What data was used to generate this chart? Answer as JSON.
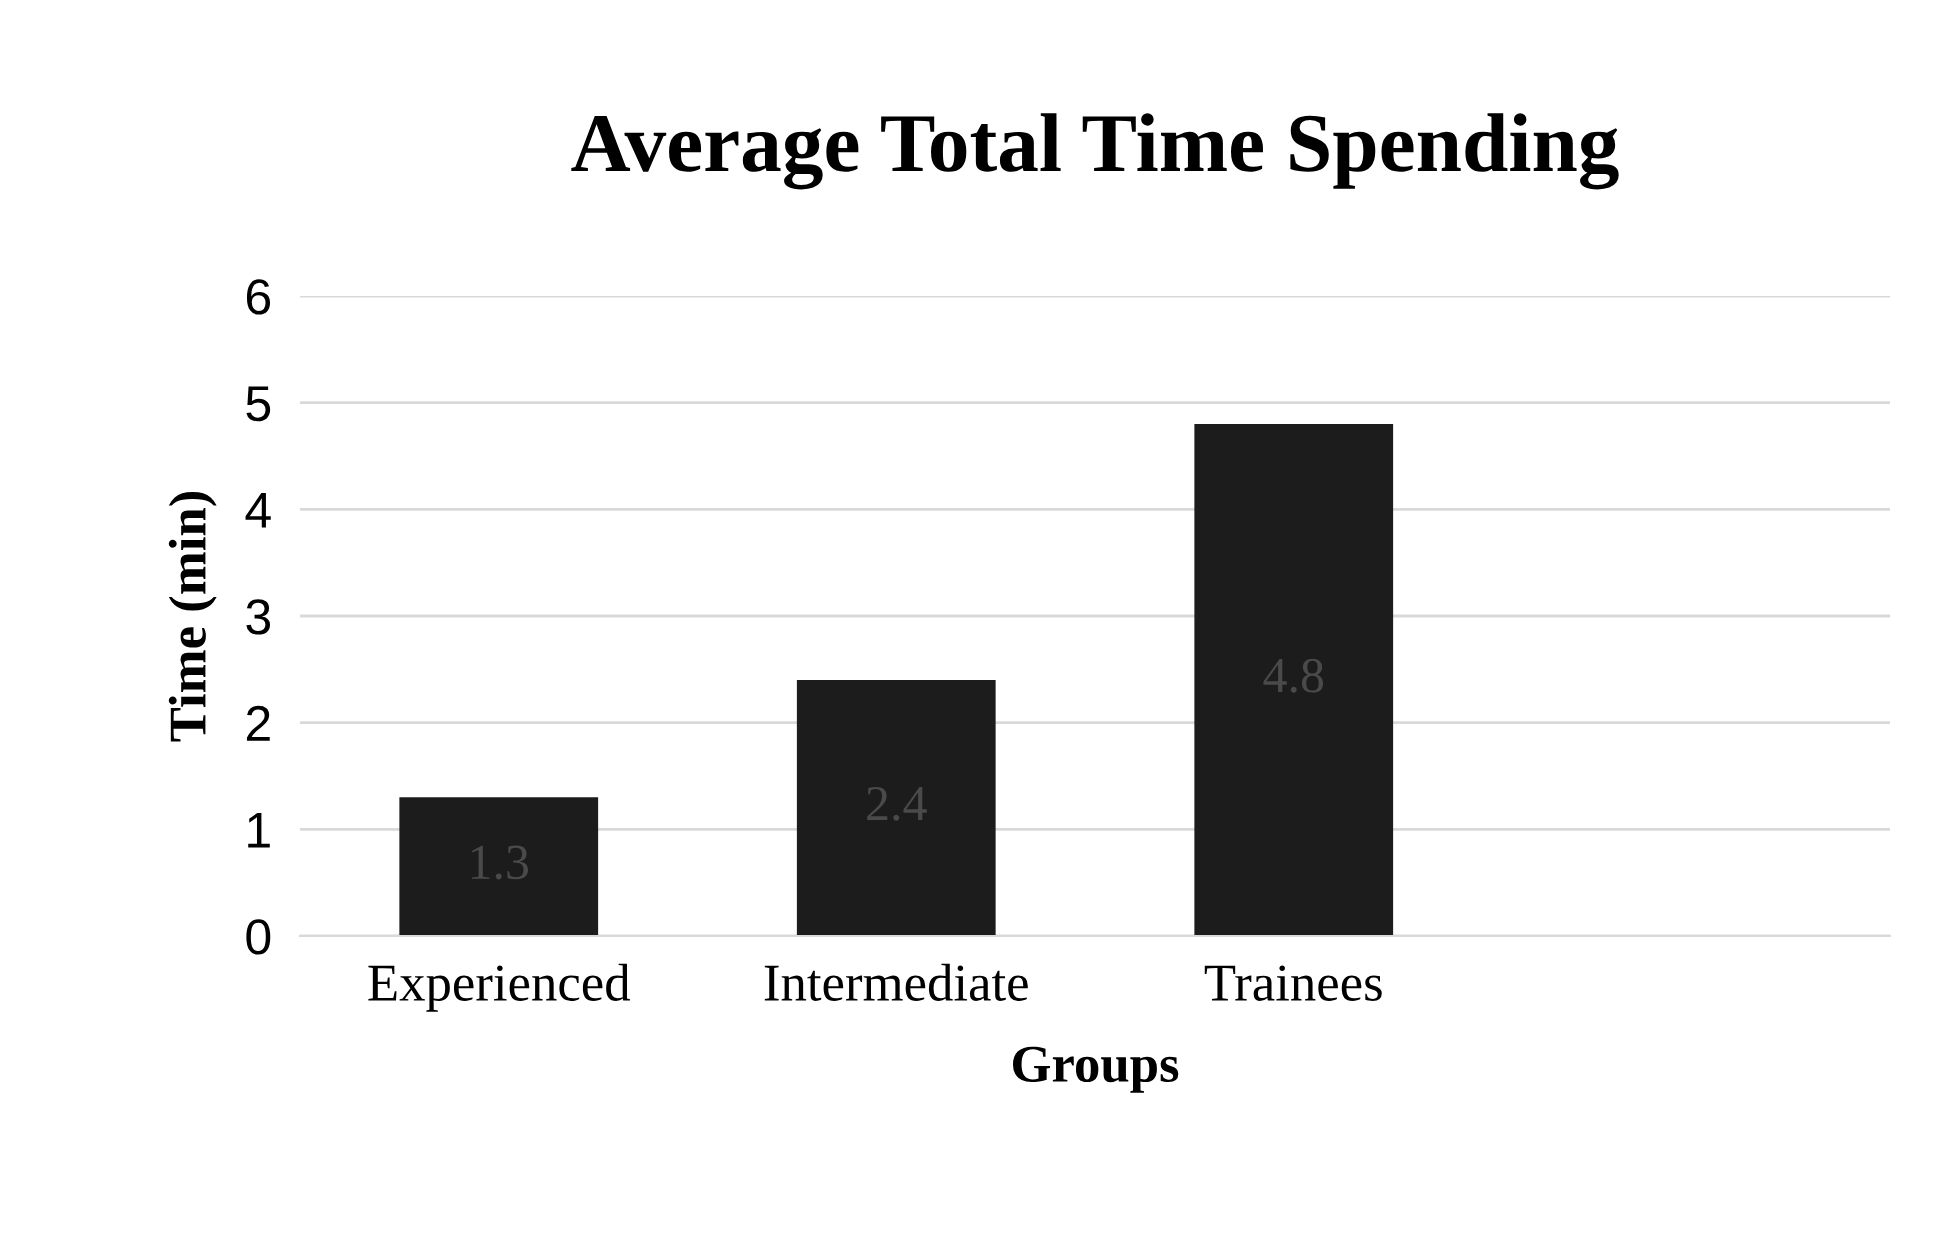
{
  "chart_data": {
    "type": "bar",
    "title": "Average Total Time Spending",
    "categories": [
      "Experienced",
      "Intermediate",
      "Trainees",
      null
    ],
    "values": [
      1.3,
      2.4,
      4.8,
      null
    ],
    "color": "#1c1c1c",
    "xlabel": "Groups",
    "ylabel": "Time (min)",
    "ylim": [
      0,
      6
    ],
    "yticks": [
      0,
      1,
      2,
      3,
      4,
      5,
      6
    ],
    "grid": "y",
    "data_labels": true
  }
}
